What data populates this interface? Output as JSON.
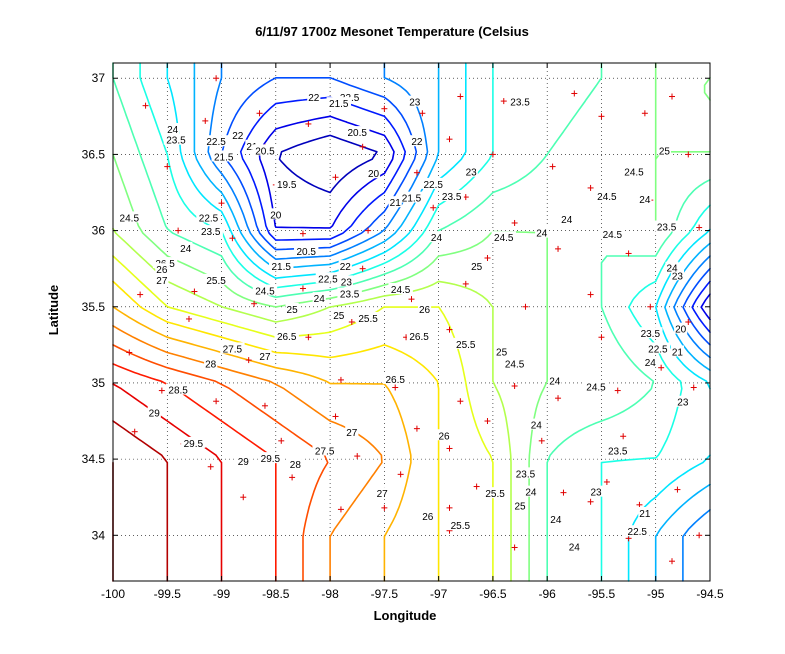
{
  "chart_data": {
    "type": "contour",
    "title": "6/11/97 1700z Mesonet Temperature (Celsius",
    "xlabel": "Longitude",
    "ylabel": "Latitude",
    "xlim": [
      -100,
      -94.5
    ],
    "ylim": [
      33.7,
      37.1
    ],
    "xticks": [
      -100,
      -99.5,
      -99,
      -98.5,
      -98,
      -97.5,
      -97,
      -96.5,
      -96,
      -95.5,
      -95,
      -94.5
    ],
    "yticks": [
      34,
      34.5,
      35,
      35.5,
      36,
      36.5,
      37
    ],
    "xtick_labels": [
      "-100",
      "-99.5",
      "-99",
      "-98.5",
      "-98",
      "-97.5",
      "-97",
      "-96.5",
      "-96",
      "-95.5",
      "-95",
      "-94.5"
    ],
    "ytick_labels": [
      "34",
      "34.5",
      "35",
      "35.5",
      "36",
      "36.5",
      "37"
    ],
    "grid": true,
    "colormap": [
      "#00008f",
      "#0000ff",
      "#0080ff",
      "#00ffff",
      "#80ff80",
      "#ffff00",
      "#ff8000",
      "#ff0000",
      "#800000"
    ],
    "contour_levels": [
      19.5,
      20,
      20.5,
      21,
      21.5,
      22,
      22.5,
      23,
      23.5,
      24,
      24.5,
      25,
      25.5,
      26,
      26.5,
      27,
      27.5,
      28,
      28.5,
      29,
      29.5
    ],
    "temperature_grid": {
      "lons": [
        -100,
        -99.5,
        -99,
        -98.5,
        -98,
        -97.5,
        -97,
        -96.5,
        -96,
        -95.5,
        -95,
        -94.5
      ],
      "lats": [
        37,
        36.5,
        36,
        35.5,
        35,
        34.5,
        34
      ],
      "values": [
        [
          24.0,
          23.0,
          22.0,
          21.5,
          21.5,
          22.0,
          22.5,
          23.5,
          23.5,
          24.0,
          24.5,
          24.5
        ],
        [
          24.5,
          23.5,
          21.5,
          20.0,
          19.5,
          20.0,
          22.5,
          23.5,
          24.0,
          24.5,
          24.5,
          24.5
        ],
        [
          25.0,
          24.0,
          23.5,
          20.5,
          20.5,
          22.0,
          24.0,
          24.5,
          24.5,
          24.0,
          24.5,
          23.0
        ],
        [
          26.5,
          25.5,
          25.0,
          24.5,
          25.0,
          25.5,
          25.5,
          25.0,
          24.5,
          24.0,
          23.0,
          20.0
        ],
        [
          28.5,
          28.0,
          27.5,
          27.0,
          26.5,
          26.5,
          26.0,
          25.0,
          24.5,
          24.5,
          24.0,
          23.0
        ],
        [
          29.5,
          29.0,
          28.5,
          28.0,
          27.5,
          27.0,
          26.0,
          25.5,
          24.0,
          23.5,
          23.5,
          23.0
        ],
        [
          29.5,
          29.0,
          28.5,
          28.0,
          27.0,
          26.5,
          26.0,
          25.5,
          24.0,
          23.5,
          22.5,
          21.5
        ]
      ]
    },
    "contour_labels": [
      {
        "text": "22",
        "lon": -98.15,
        "lat": 36.87
      },
      {
        "text": "22.5",
        "lon": -97.82,
        "lat": 36.87
      },
      {
        "text": "21.5",
        "lon": -97.92,
        "lat": 36.83
      },
      {
        "text": "23",
        "lon": -97.22,
        "lat": 36.84
      },
      {
        "text": "23.5",
        "lon": -96.25,
        "lat": 36.84
      },
      {
        "text": "24",
        "lon": -99.45,
        "lat": 36.66
      },
      {
        "text": "23.5",
        "lon": -99.42,
        "lat": 36.59
      },
      {
        "text": "22.5",
        "lon": -99.05,
        "lat": 36.58
      },
      {
        "text": "22",
        "lon": -98.85,
        "lat": 36.62
      },
      {
        "text": "21.5",
        "lon": -98.98,
        "lat": 36.48
      },
      {
        "text": "21",
        "lon": -98.72,
        "lat": 36.55
      },
      {
        "text": "20.5",
        "lon": -98.6,
        "lat": 36.52
      },
      {
        "text": "20.5",
        "lon": -97.75,
        "lat": 36.64
      },
      {
        "text": "22",
        "lon": -97.2,
        "lat": 36.58
      },
      {
        "text": "23",
        "lon": -96.7,
        "lat": 36.38
      },
      {
        "text": "25",
        "lon": -94.92,
        "lat": 36.52
      },
      {
        "text": "24.5",
        "lon": -95.2,
        "lat": 36.38
      },
      {
        "text": "24.5",
        "lon": -95.45,
        "lat": 36.22
      },
      {
        "text": "24",
        "lon": -95.1,
        "lat": 36.2
      },
      {
        "text": "19.5",
        "lon": -98.4,
        "lat": 36.3
      },
      {
        "text": "20",
        "lon": -97.6,
        "lat": 36.37
      },
      {
        "text": "20",
        "lon": -98.5,
        "lat": 36.1
      },
      {
        "text": "21",
        "lon": -97.4,
        "lat": 36.18
      },
      {
        "text": "21.5",
        "lon": -97.25,
        "lat": 36.21
      },
      {
        "text": "22.5",
        "lon": -97.05,
        "lat": 36.3
      },
      {
        "text": "23.5",
        "lon": -96.88,
        "lat": 36.22
      },
      {
        "text": "24",
        "lon": -97.02,
        "lat": 35.95
      },
      {
        "text": "24.5",
        "lon": -96.4,
        "lat": 35.95
      },
      {
        "text": "24",
        "lon": -96.05,
        "lat": 35.98
      },
      {
        "text": "24",
        "lon": -95.82,
        "lat": 36.07
      },
      {
        "text": "24.5",
        "lon": -95.4,
        "lat": 35.97
      },
      {
        "text": "23.5",
        "lon": -94.9,
        "lat": 36.02
      },
      {
        "text": "24.5",
        "lon": -99.85,
        "lat": 36.08
      },
      {
        "text": "22.5",
        "lon": -99.12,
        "lat": 36.08
      },
      {
        "text": "23.5",
        "lon": -99.1,
        "lat": 35.99
      },
      {
        "text": "24",
        "lon": -99.33,
        "lat": 35.88
      },
      {
        "text": "20.5",
        "lon": -98.22,
        "lat": 35.86
      },
      {
        "text": "21.5",
        "lon": -98.45,
        "lat": 35.76
      },
      {
        "text": "22",
        "lon": -97.86,
        "lat": 35.76
      },
      {
        "text": "22.5",
        "lon": -98.02,
        "lat": 35.68
      },
      {
        "text": "23",
        "lon": -97.85,
        "lat": 35.66
      },
      {
        "text": "23.5",
        "lon": -97.82,
        "lat": 35.58
      },
      {
        "text": "24",
        "lon": -98.1,
        "lat": 35.55
      },
      {
        "text": "24.5",
        "lon": -97.35,
        "lat": 35.61
      },
      {
        "text": "25",
        "lon": -96.65,
        "lat": 35.76
      },
      {
        "text": "26.5",
        "lon": -99.52,
        "lat": 35.78
      },
      {
        "text": "26",
        "lon": -99.55,
        "lat": 35.74
      },
      {
        "text": "27",
        "lon": -99.55,
        "lat": 35.67
      },
      {
        "text": "25.5",
        "lon": -99.05,
        "lat": 35.67
      },
      {
        "text": "24.5",
        "lon": -98.6,
        "lat": 35.6
      },
      {
        "text": "25",
        "lon": -98.35,
        "lat": 35.48
      },
      {
        "text": "25",
        "lon": -97.92,
        "lat": 35.44
      },
      {
        "text": "25.5",
        "lon": -97.65,
        "lat": 35.42
      },
      {
        "text": "26",
        "lon": -97.13,
        "lat": 35.48
      },
      {
        "text": "26.5",
        "lon": -97.18,
        "lat": 35.3
      },
      {
        "text": "26.5",
        "lon": -98.4,
        "lat": 35.3
      },
      {
        "text": "27.5",
        "lon": -98.9,
        "lat": 35.22
      },
      {
        "text": "27",
        "lon": -98.6,
        "lat": 35.17
      },
      {
        "text": "28",
        "lon": -99.1,
        "lat": 35.12
      },
      {
        "text": "25.5",
        "lon": -96.75,
        "lat": 35.25
      },
      {
        "text": "25",
        "lon": -96.42,
        "lat": 35.2
      },
      {
        "text": "24.5",
        "lon": -96.3,
        "lat": 35.12
      },
      {
        "text": "24",
        "lon": -95.93,
        "lat": 35.01
      },
      {
        "text": "24.5",
        "lon": -95.55,
        "lat": 34.97
      },
      {
        "text": "24",
        "lon": -95.05,
        "lat": 35.13
      },
      {
        "text": "23",
        "lon": -94.75,
        "lat": 34.87
      },
      {
        "text": "22.5",
        "lon": -94.98,
        "lat": 35.22
      },
      {
        "text": "23.5",
        "lon": -95.05,
        "lat": 35.32
      },
      {
        "text": "23",
        "lon": -94.8,
        "lat": 35.7
      },
      {
        "text": "24",
        "lon": -94.85,
        "lat": 35.75
      },
      {
        "text": "21",
        "lon": -94.8,
        "lat": 35.2
      },
      {
        "text": "20",
        "lon": -94.77,
        "lat": 35.35
      },
      {
        "text": "26.5",
        "lon": -97.4,
        "lat": 35.02
      },
      {
        "text": "28.5",
        "lon": -99.4,
        "lat": 34.95
      },
      {
        "text": "29",
        "lon": -99.62,
        "lat": 34.8
      },
      {
        "text": "29.5",
        "lon": -99.26,
        "lat": 34.6
      },
      {
        "text": "27",
        "lon": -97.8,
        "lat": 34.67
      },
      {
        "text": "27.5",
        "lon": -98.05,
        "lat": 34.55
      },
      {
        "text": "29",
        "lon": -98.8,
        "lat": 34.48
      },
      {
        "text": "29.5",
        "lon": -98.55,
        "lat": 34.5
      },
      {
        "text": "28",
        "lon": -98.32,
        "lat": 34.46
      },
      {
        "text": "26",
        "lon": -96.95,
        "lat": 34.65
      },
      {
        "text": "24",
        "lon": -96.1,
        "lat": 34.72
      },
      {
        "text": "23.5",
        "lon": -95.35,
        "lat": 34.55
      },
      {
        "text": "23.5",
        "lon": -96.2,
        "lat": 34.4
      },
      {
        "text": "24",
        "lon": -96.15,
        "lat": 34.28
      },
      {
        "text": "23",
        "lon": -95.55,
        "lat": 34.28
      },
      {
        "text": "27",
        "lon": -97.52,
        "lat": 34.27
      },
      {
        "text": "25.5",
        "lon": -96.48,
        "lat": 34.27
      },
      {
        "text": "25",
        "lon": -96.25,
        "lat": 34.19
      },
      {
        "text": "24",
        "lon": -95.92,
        "lat": 34.1
      },
      {
        "text": "21",
        "lon": -95.1,
        "lat": 34.14
      },
      {
        "text": "26",
        "lon": -97.1,
        "lat": 34.12
      },
      {
        "text": "25.5",
        "lon": -96.8,
        "lat": 34.06
      },
      {
        "text": "22.5",
        "lon": -95.17,
        "lat": 34.02
      },
      {
        "text": "24",
        "lon": -95.75,
        "lat": 33.92
      }
    ],
    "stations": [
      {
        "lon": -99.05,
        "lat": 37.0
      },
      {
        "lon": -99.7,
        "lat": 36.82
      },
      {
        "lon": -98.65,
        "lat": 36.77
      },
      {
        "lon": -98.2,
        "lat": 36.7
      },
      {
        "lon": -97.5,
        "lat": 36.8
      },
      {
        "lon": -97.15,
        "lat": 36.77
      },
      {
        "lon": -96.8,
        "lat": 36.88
      },
      {
        "lon": -96.4,
        "lat": 36.85
      },
      {
        "lon": -95.75,
        "lat": 36.9
      },
      {
        "lon": -95.5,
        "lat": 36.75
      },
      {
        "lon": -95.1,
        "lat": 36.77
      },
      {
        "lon": -94.85,
        "lat": 36.88
      },
      {
        "lon": -99.15,
        "lat": 36.72
      },
      {
        "lon": -98.6,
        "lat": 36.55
      },
      {
        "lon": -97.7,
        "lat": 36.55
      },
      {
        "lon": -96.9,
        "lat": 36.6
      },
      {
        "lon": -96.5,
        "lat": 36.5
      },
      {
        "lon": -95.95,
        "lat": 36.42
      },
      {
        "lon": -95.2,
        "lat": 36.4
      },
      {
        "lon": -94.7,
        "lat": 36.5
      },
      {
        "lon": -99.5,
        "lat": 36.42
      },
      {
        "lon": -99.0,
        "lat": 36.18
      },
      {
        "lon": -98.5,
        "lat": 36.3
      },
      {
        "lon": -97.95,
        "lat": 36.35
      },
      {
        "lon": -97.2,
        "lat": 36.38
      },
      {
        "lon": -96.75,
        "lat": 36.22
      },
      {
        "lon": -96.3,
        "lat": 36.05
      },
      {
        "lon": -95.6,
        "lat": 36.28
      },
      {
        "lon": -95.05,
        "lat": 36.2
      },
      {
        "lon": -94.6,
        "lat": 36.02
      },
      {
        "lon": -99.9,
        "lat": 36.08
      },
      {
        "lon": -99.4,
        "lat": 36.0
      },
      {
        "lon": -98.9,
        "lat": 35.95
      },
      {
        "lon": -98.25,
        "lat": 35.98
      },
      {
        "lon": -97.65,
        "lat": 36.0
      },
      {
        "lon": -97.05,
        "lat": 36.15
      },
      {
        "lon": -96.55,
        "lat": 35.82
      },
      {
        "lon": -95.9,
        "lat": 35.88
      },
      {
        "lon": -95.25,
        "lat": 35.85
      },
      {
        "lon": -99.75,
        "lat": 35.58
      },
      {
        "lon": -99.25,
        "lat": 35.6
      },
      {
        "lon": -98.7,
        "lat": 35.52
      },
      {
        "lon": -98.25,
        "lat": 35.62
      },
      {
        "lon": -97.7,
        "lat": 35.75
      },
      {
        "lon": -97.25,
        "lat": 35.55
      },
      {
        "lon": -96.75,
        "lat": 35.65
      },
      {
        "lon": -96.2,
        "lat": 35.5
      },
      {
        "lon": -95.6,
        "lat": 35.58
      },
      {
        "lon": -95.05,
        "lat": 35.5
      },
      {
        "lon": -94.7,
        "lat": 35.4
      },
      {
        "lon": -99.85,
        "lat": 35.2
      },
      {
        "lon": -99.3,
        "lat": 35.42
      },
      {
        "lon": -98.75,
        "lat": 35.15
      },
      {
        "lon": -98.2,
        "lat": 35.3
      },
      {
        "lon": -97.8,
        "lat": 35.4
      },
      {
        "lon": -97.3,
        "lat": 35.3
      },
      {
        "lon": -96.9,
        "lat": 35.35
      },
      {
        "lon": -96.45,
        "lat": 35.2
      },
      {
        "lon": -95.5,
        "lat": 35.3
      },
      {
        "lon": -94.95,
        "lat": 35.1
      },
      {
        "lon": -99.55,
        "lat": 34.95
      },
      {
        "lon": -99.05,
        "lat": 34.88
      },
      {
        "lon": -98.6,
        "lat": 34.85
      },
      {
        "lon": -97.9,
        "lat": 35.02
      },
      {
        "lon": -97.4,
        "lat": 34.97
      },
      {
        "lon": -96.8,
        "lat": 34.88
      },
      {
        "lon": -96.3,
        "lat": 34.98
      },
      {
        "lon": -95.9,
        "lat": 34.9
      },
      {
        "lon": -95.35,
        "lat": 34.95
      },
      {
        "lon": -94.65,
        "lat": 34.97
      },
      {
        "lon": -99.8,
        "lat": 34.68
      },
      {
        "lon": -99.35,
        "lat": 34.6
      },
      {
        "lon": -98.45,
        "lat": 34.62
      },
      {
        "lon": -97.95,
        "lat": 34.78
      },
      {
        "lon": -97.2,
        "lat": 34.7
      },
      {
        "lon": -96.9,
        "lat": 34.57
      },
      {
        "lon": -96.55,
        "lat": 34.75
      },
      {
        "lon": -96.05,
        "lat": 34.62
      },
      {
        "lon": -95.3,
        "lat": 34.65
      },
      {
        "lon": -99.1,
        "lat": 34.45
      },
      {
        "lon": -98.35,
        "lat": 34.38
      },
      {
        "lon": -97.75,
        "lat": 34.52
      },
      {
        "lon": -97.35,
        "lat": 34.4
      },
      {
        "lon": -96.65,
        "lat": 34.32
      },
      {
        "lon": -95.85,
        "lat": 34.28
      },
      {
        "lon": -95.45,
        "lat": 34.35
      },
      {
        "lon": -94.8,
        "lat": 34.3
      },
      {
        "lon": -98.8,
        "lat": 34.25
      },
      {
        "lon": -97.9,
        "lat": 34.17
      },
      {
        "lon": -97.5,
        "lat": 34.18
      },
      {
        "lon": -96.9,
        "lat": 34.18
      },
      {
        "lon": -96.3,
        "lat": 33.92
      },
      {
        "lon": -95.6,
        "lat": 34.22
      },
      {
        "lon": -95.15,
        "lat": 34.2
      },
      {
        "lon": -94.6,
        "lat": 34.0
      },
      {
        "lon": -95.25,
        "lat": 33.98
      },
      {
        "lon": -94.85,
        "lat": 33.83
      },
      {
        "lon": -96.9,
        "lat": 34.03
      }
    ]
  }
}
